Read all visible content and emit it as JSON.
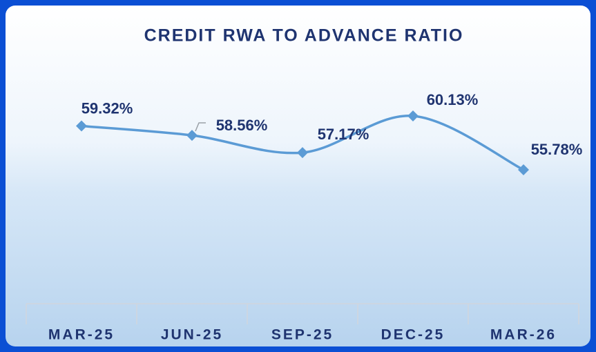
{
  "chart_data": {
    "type": "line",
    "title": "CREDIT RWA TO ADVANCE RATIO",
    "categories": [
      "MAR-25",
      "JUN-25",
      "SEP-25",
      "DEC-25",
      "MAR-26"
    ],
    "values": [
      59.32,
      58.56,
      57.17,
      60.13,
      55.78
    ],
    "value_labels": [
      "59.32%",
      "58.56%",
      "57.17%",
      "60.13%",
      "55.78%"
    ],
    "color": "#5b9bd5"
  }
}
